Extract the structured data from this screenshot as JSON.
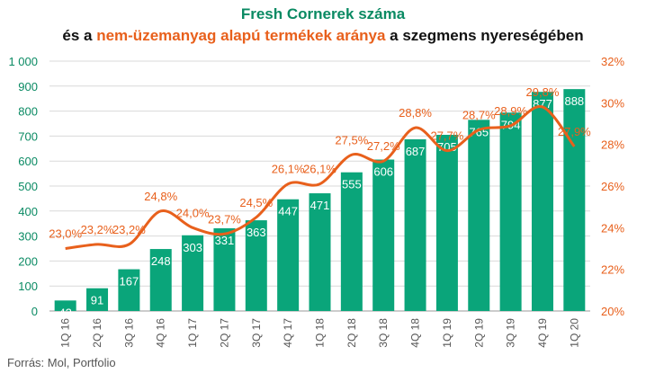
{
  "title_line1": "Fresh Cornerek száma",
  "title_line2_a": "és a ",
  "title_line2_b": "nem-üzemanyag alapú termékek aránya",
  "title_line2_c": " a szegmens nyereségében",
  "source": "Forrás: Mol, Portfolio",
  "colors": {
    "bar": "#0aa57a",
    "line": "#e8601c",
    "title_green": "#0a8a63",
    "right_axis": "#e8601c"
  },
  "chart_data": {
    "type": "bar",
    "categories": [
      "1Q 16",
      "2Q 16",
      "3Q 16",
      "4Q 16",
      "1Q 17",
      "2Q 17",
      "3Q 17",
      "4Q 17",
      "1Q 18",
      "2Q 18",
      "3Q 18",
      "4Q 18",
      "1Q 19",
      "2Q 19",
      "3Q 19",
      "4Q 19",
      "1Q 20"
    ],
    "bar_values": [
      42,
      91,
      167,
      248,
      303,
      331,
      363,
      447,
      471,
      555,
      606,
      687,
      705,
      765,
      794,
      877,
      888
    ],
    "bar_labels": [
      "42",
      "91",
      "167",
      "248",
      "303",
      "331",
      "363",
      "447",
      "471",
      "555",
      "606",
      "687",
      "705",
      "765",
      "794",
      "877",
      "888"
    ],
    "line_values": [
      23.0,
      23.2,
      23.2,
      24.8,
      24.0,
      23.7,
      24.5,
      26.1,
      26.1,
      27.5,
      27.2,
      28.8,
      27.7,
      28.7,
      28.9,
      29.8,
      27.9
    ],
    "line_labels": [
      "23,0%",
      "23,2%",
      "23,2%",
      "24,8%",
      "24,0%",
      "23,7%",
      "24,5%",
      "26,1%",
      "26,1%",
      "27,5%",
      "27,2%",
      "28,8%",
      "27,7%",
      "28,7%",
      "28,9%",
      "29,8%",
      "27,9%"
    ],
    "y_left": {
      "min": 0,
      "max": 1000,
      "ticks": [
        0,
        100,
        200,
        300,
        400,
        500,
        600,
        700,
        800,
        900,
        1000
      ],
      "tick_labels": [
        "0",
        "100",
        "200",
        "300",
        "400",
        "500",
        "600",
        "700",
        "800",
        "900",
        "1 000"
      ]
    },
    "y_right": {
      "min": 20,
      "max": 32,
      "ticks": [
        20,
        22,
        24,
        26,
        28,
        30,
        32
      ],
      "tick_labels": [
        "20%",
        "22%",
        "24%",
        "26%",
        "28%",
        "30%",
        "32%"
      ]
    }
  }
}
